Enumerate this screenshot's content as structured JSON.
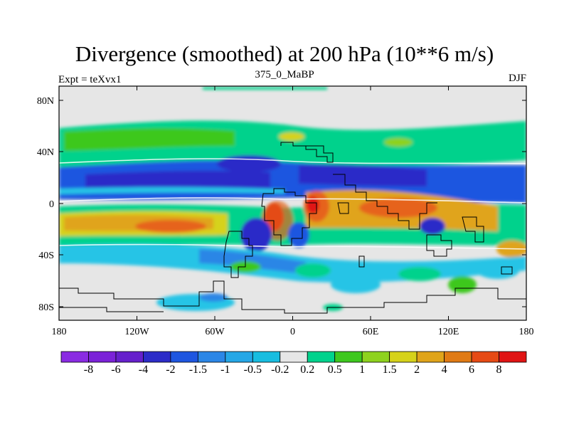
{
  "header": {
    "title": "Divergence (smoothed) at 200 hPa (10**6 m/s)",
    "subtitle": "375_0_MaBP",
    "left": "Expt = teXvx1",
    "right": "DJF"
  },
  "axes": {
    "x_ticks": [
      "180",
      "120W",
      "60W",
      "0",
      "60E",
      "120E",
      "180"
    ],
    "y_ticks": [
      "80N",
      "40N",
      "0",
      "40S",
      "80S"
    ]
  },
  "colorbar": {
    "colors": [
      "#8a2be2",
      "#7b22d8",
      "#6620cc",
      "#2c2cc8",
      "#1e56e0",
      "#2b86e6",
      "#25a7e6",
      "#18bde0",
      "#e6e6e6",
      "#00d28c",
      "#3ec81e",
      "#8ed21e",
      "#d6d21a",
      "#e0a41a",
      "#e07a14",
      "#e64a14",
      "#e01414"
    ],
    "labels": [
      "-8",
      "-6",
      "-4",
      "-2",
      "-1.5",
      "-1",
      "-0.5",
      "-0.2",
      "0.2",
      "0.5",
      "1",
      "1.5",
      "2",
      "4",
      "6",
      "8"
    ]
  },
  "map": {
    "background": "#e6e6e6",
    "palette": {
      "blue_dark": "#2c2cc8",
      "blue": "#1e56e0",
      "blue_mid": "#2b86e6",
      "cyan": "#25c4e6",
      "teal": "#00d28c",
      "green": "#3ec81e",
      "yellow_green": "#8ed21e",
      "yellow": "#d6d21a",
      "orange": "#e0a41a",
      "red_orange": "#e6641a",
      "red": "#e01414"
    }
  }
}
